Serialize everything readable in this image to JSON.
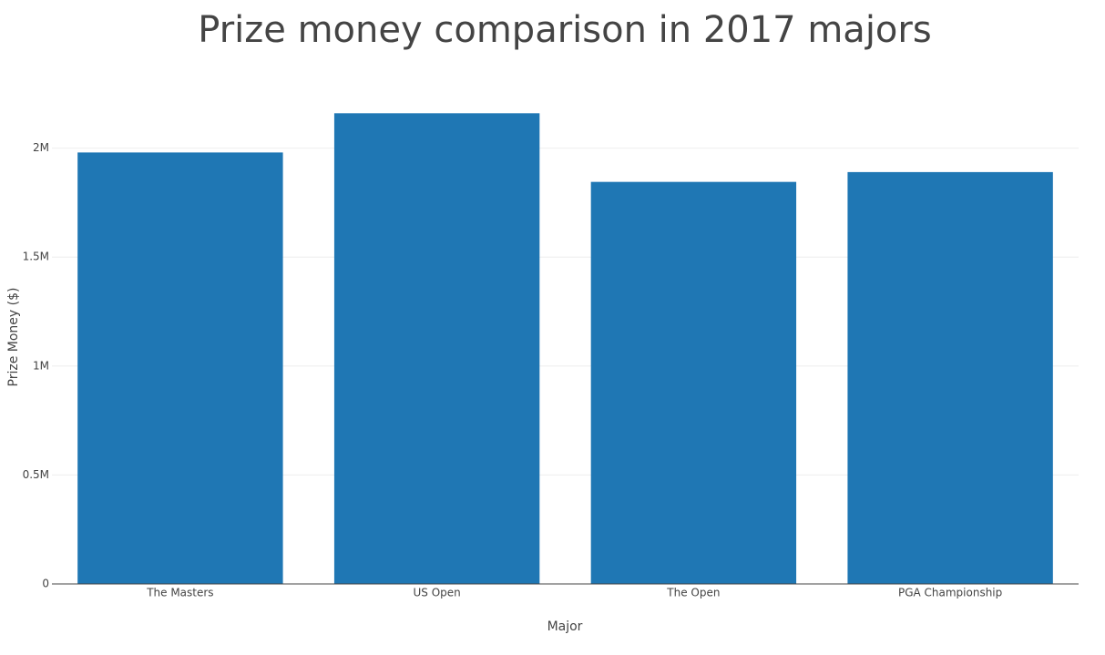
{
  "chart_data": {
    "type": "bar",
    "title": "Prize money comparison in 2017 majors",
    "x_label": "Major",
    "y_label": "Prize Money ($)",
    "categories": [
      "The Masters",
      "US Open",
      "The Open",
      "PGA Championship"
    ],
    "values": [
      1980000,
      2160000,
      1845000,
      1890000
    ],
    "color": "#1f77b4",
    "ylim": [
      0,
      2270000
    ],
    "yticks": [
      0,
      {
        "value": 500000,
        "label": "0.5M"
      },
      {
        "value": 1000000,
        "label": "1M"
      },
      {
        "value": 1500000,
        "label": "1.5M"
      },
      {
        "value": 2000000,
        "label": "2M"
      }
    ],
    "grid": true
  }
}
